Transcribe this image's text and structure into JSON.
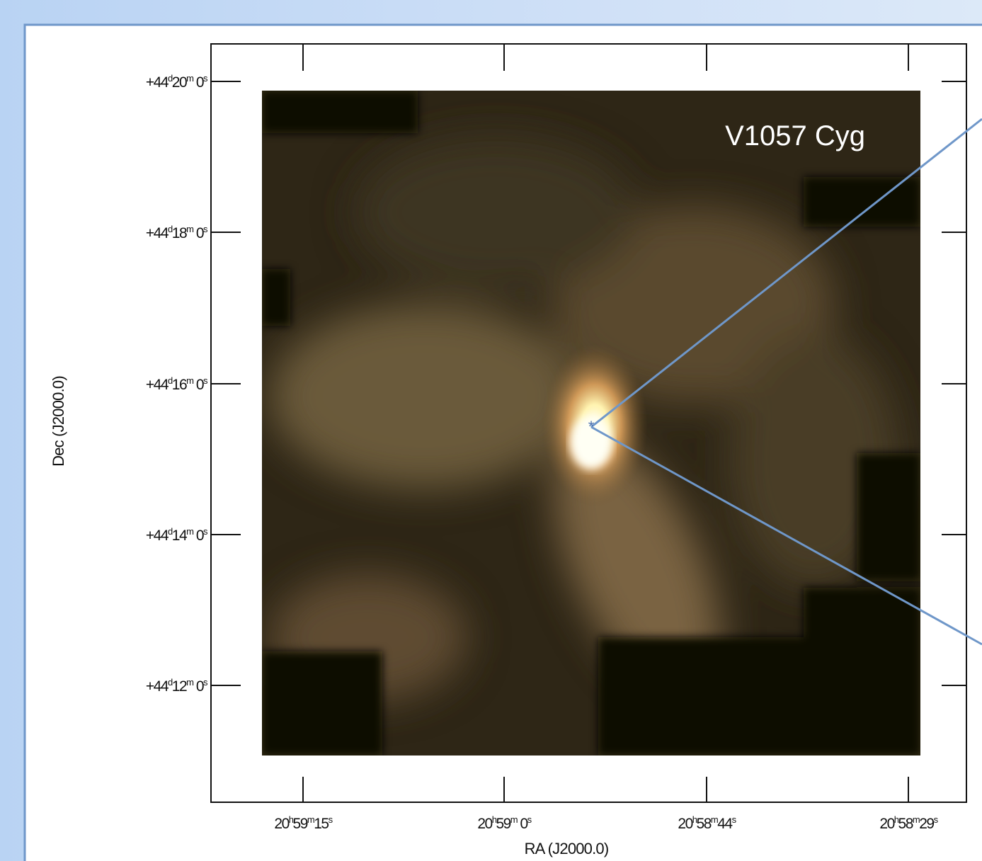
{
  "figure": {
    "label": "V1057 Cyg",
    "x_axis_title": "RA (J2000.0)",
    "y_axis_title": "Dec (J2000.0)",
    "y_tick_labels": [
      [
        "+44",
        "d",
        "20",
        "m",
        " 0",
        "s"
      ],
      [
        "+44",
        "d",
        "18",
        "m",
        " 0",
        "s"
      ],
      [
        "+44",
        "d",
        "16",
        "m",
        " 0",
        "s"
      ],
      [
        "+44",
        "d",
        "14",
        "m",
        " 0",
        "s"
      ],
      [
        "+44",
        "d",
        "12",
        "m",
        " 0",
        "s"
      ]
    ],
    "x_tick_labels": [
      [
        "20",
        "h",
        "59",
        "m",
        "15",
        "s"
      ],
      [
        "20",
        "h",
        "59",
        "m",
        " 0",
        "s"
      ],
      [
        "20",
        "h",
        "58",
        "m",
        "44",
        "s"
      ],
      [
        "20",
        "h",
        "58",
        "m",
        "29",
        "s"
      ]
    ]
  }
}
